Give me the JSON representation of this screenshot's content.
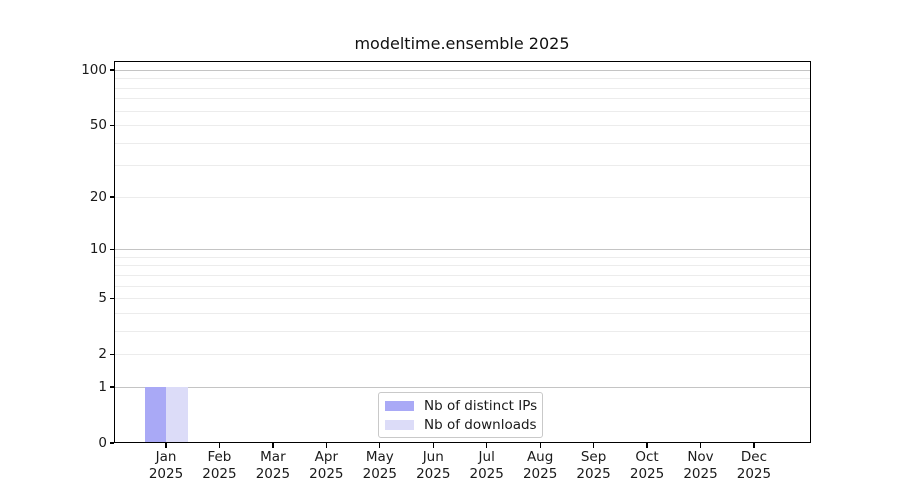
{
  "title": "modeltime.ensemble 2025",
  "chart_data": {
    "type": "bar",
    "title": "modeltime.ensemble 2025",
    "categories": [
      "Jan 2025",
      "Feb 2025",
      "Mar 2025",
      "Apr 2025",
      "May 2025",
      "Jun 2025",
      "Jul 2025",
      "Aug 2025",
      "Sep 2025",
      "Oct 2025",
      "Nov 2025",
      "Dec 2025"
    ],
    "series": [
      {
        "name": "Nb of distinct IPs",
        "color": "#a9a9f6",
        "values": [
          1,
          0,
          0,
          0,
          0,
          0,
          0,
          0,
          0,
          0,
          0,
          0
        ]
      },
      {
        "name": "Nb of downloads",
        "color": "#dcdcf8",
        "values": [
          1,
          0,
          0,
          0,
          0,
          0,
          0,
          0,
          0,
          0,
          0,
          0
        ]
      }
    ],
    "yscale": "log1p",
    "ylim": [
      0,
      113
    ],
    "y_tick_labels": [
      100,
      50,
      20,
      10,
      5,
      2,
      1,
      0
    ],
    "y_major_gridlines": [
      1,
      10,
      100
    ],
    "y_minor_gridlines": [
      2,
      3,
      4,
      5,
      6,
      7,
      8,
      9,
      20,
      30,
      40,
      50,
      60,
      70,
      80,
      90
    ],
    "grid": true,
    "legend_position": "lower center",
    "xlabel": "",
    "ylabel": ""
  },
  "legend": {
    "entries": [
      {
        "label": "Nb of distinct IPs",
        "color": "#a9a9f6"
      },
      {
        "label": "Nb of downloads",
        "color": "#dcdcf8"
      }
    ]
  },
  "colors": {
    "background": "#ffffff",
    "bar_distinct_ips": "#a9a9f6",
    "bar_downloads": "#dcdcf8",
    "major_grid": "#c4c4c4",
    "minor_grid": "#ececec",
    "spine": "#000000",
    "text": "#1a1a1a",
    "legend_border": "#c9c9c9"
  }
}
